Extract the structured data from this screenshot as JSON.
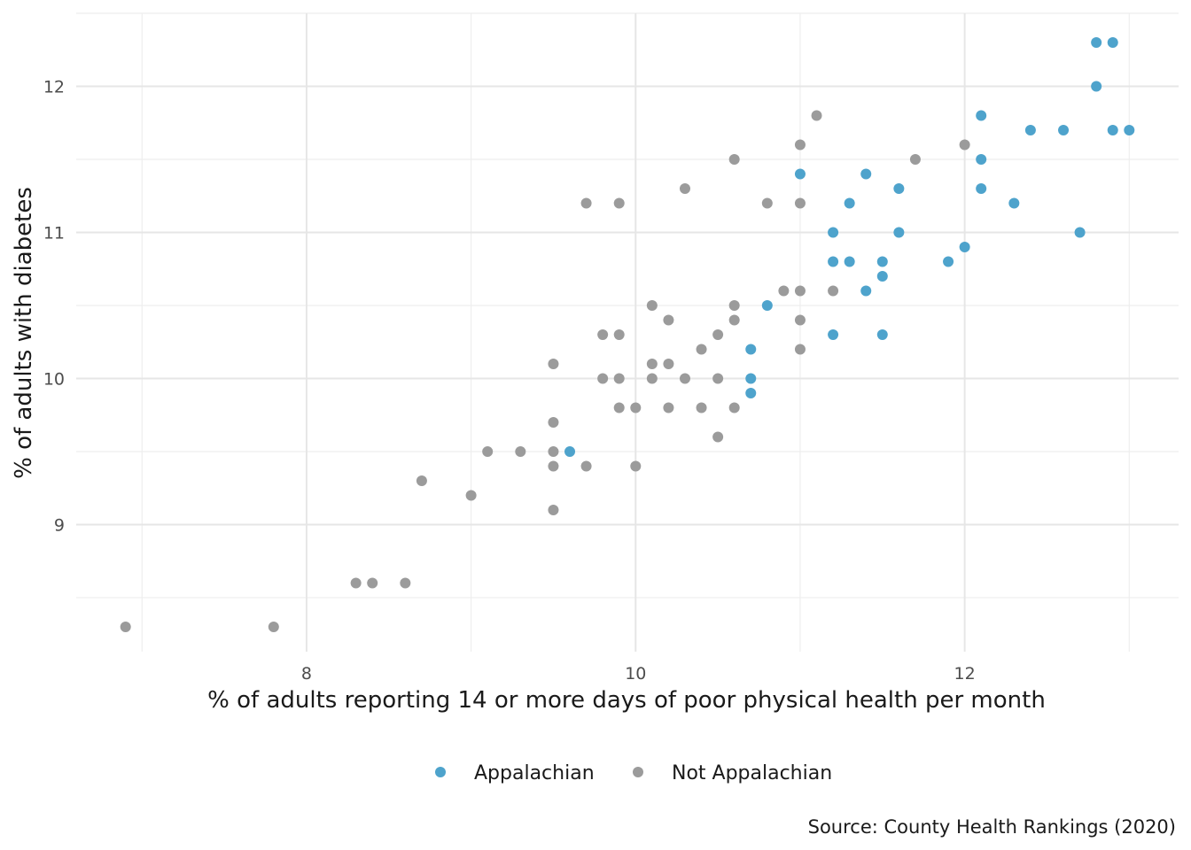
{
  "chart_data": {
    "type": "scatter",
    "xlabel": "% of adults reporting 14 or more days of poor physical health per month",
    "ylabel": "% of adults with diabetes",
    "caption": "Source: County Health Rankings (2020)",
    "xlim": [
      6.6,
      13.3
    ],
    "ylim": [
      8.13,
      12.5
    ],
    "x_ticks": [
      8,
      10,
      12
    ],
    "y_ticks": [
      9,
      10,
      11,
      12
    ],
    "x_tick_labels": [
      "8",
      "10",
      "12"
    ],
    "y_tick_labels": [
      "9",
      "10",
      "11",
      "12"
    ],
    "grid": true,
    "legend_position": "bottom",
    "series": [
      {
        "name": "Appalachian",
        "color": "#4ea3cc",
        "points": [
          [
            9.6,
            9.5
          ],
          [
            10.7,
            9.9
          ],
          [
            10.7,
            10.0
          ],
          [
            10.7,
            10.2
          ],
          [
            10.8,
            10.5
          ],
          [
            11.0,
            11.4
          ],
          [
            11.2,
            11.0
          ],
          [
            11.2,
            10.8
          ],
          [
            11.2,
            10.3
          ],
          [
            11.3,
            11.2
          ],
          [
            11.3,
            10.8
          ],
          [
            11.4,
            11.4
          ],
          [
            11.4,
            10.6
          ],
          [
            11.5,
            10.8
          ],
          [
            11.5,
            10.7
          ],
          [
            11.5,
            10.3
          ],
          [
            11.6,
            11.3
          ],
          [
            11.6,
            11.0
          ],
          [
            11.9,
            10.8
          ],
          [
            12.0,
            10.9
          ],
          [
            12.1,
            11.8
          ],
          [
            12.1,
            11.5
          ],
          [
            12.1,
            11.3
          ],
          [
            12.3,
            11.2
          ],
          [
            12.4,
            11.7
          ],
          [
            12.6,
            11.7
          ],
          [
            12.7,
            11.0
          ],
          [
            12.8,
            12.3
          ],
          [
            12.8,
            12.0
          ],
          [
            12.9,
            12.3
          ],
          [
            12.9,
            11.7
          ],
          [
            13.0,
            11.7
          ]
        ]
      },
      {
        "name": "Not Appalachian",
        "color": "#9b9b9b",
        "points": [
          [
            6.9,
            8.3
          ],
          [
            7.8,
            8.3
          ],
          [
            8.3,
            8.6
          ],
          [
            8.4,
            8.6
          ],
          [
            8.6,
            8.6
          ],
          [
            8.7,
            9.3
          ],
          [
            9.0,
            9.2
          ],
          [
            9.1,
            9.5
          ],
          [
            9.3,
            9.5
          ],
          [
            9.5,
            10.1
          ],
          [
            9.5,
            9.7
          ],
          [
            9.5,
            9.5
          ],
          [
            9.5,
            9.4
          ],
          [
            9.5,
            9.1
          ],
          [
            9.7,
            11.2
          ],
          [
            9.7,
            9.4
          ],
          [
            9.8,
            10.3
          ],
          [
            9.8,
            10.0
          ],
          [
            9.9,
            11.2
          ],
          [
            9.9,
            10.3
          ],
          [
            9.9,
            10.0
          ],
          [
            9.9,
            9.8
          ],
          [
            10.0,
            9.8
          ],
          [
            10.0,
            9.4
          ],
          [
            10.1,
            10.5
          ],
          [
            10.1,
            10.1
          ],
          [
            10.1,
            10.0
          ],
          [
            10.2,
            10.4
          ],
          [
            10.2,
            10.1
          ],
          [
            10.2,
            9.8
          ],
          [
            10.3,
            11.3
          ],
          [
            10.3,
            10.0
          ],
          [
            10.4,
            10.2
          ],
          [
            10.4,
            9.8
          ],
          [
            10.5,
            10.3
          ],
          [
            10.5,
            10.0
          ],
          [
            10.5,
            9.6
          ],
          [
            10.6,
            11.5
          ],
          [
            10.6,
            10.5
          ],
          [
            10.6,
            10.4
          ],
          [
            10.6,
            9.8
          ],
          [
            10.8,
            11.2
          ],
          [
            10.9,
            10.6
          ],
          [
            11.0,
            11.6
          ],
          [
            11.0,
            11.2
          ],
          [
            11.0,
            10.6
          ],
          [
            11.0,
            10.4
          ],
          [
            11.0,
            10.2
          ],
          [
            11.1,
            11.8
          ],
          [
            11.2,
            10.6
          ],
          [
            11.7,
            11.5
          ],
          [
            12.0,
            11.6
          ]
        ]
      }
    ]
  }
}
